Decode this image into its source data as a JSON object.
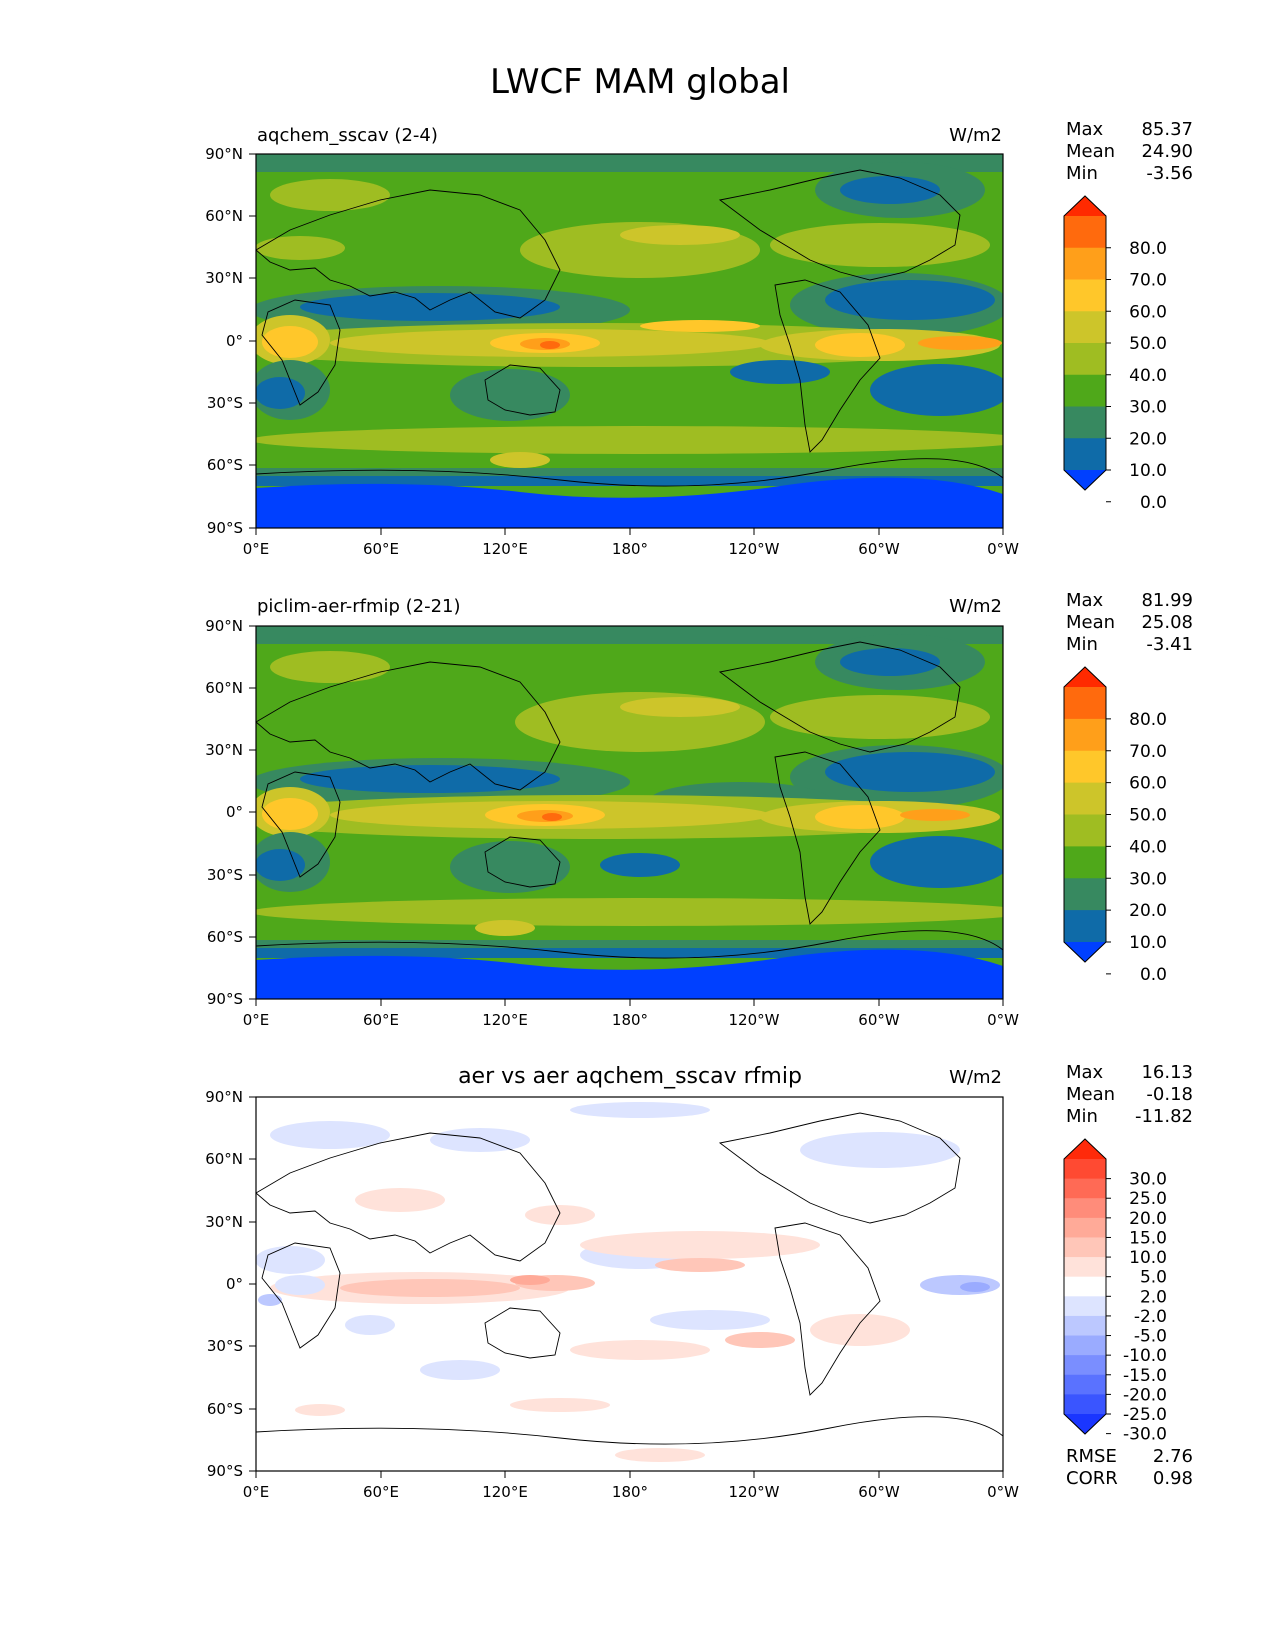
{
  "figure": {
    "title": "LWCF MAM global"
  },
  "lon_ticks": [
    "0°E",
    "60°E",
    "120°E",
    "180°",
    "120°W",
    "60°W",
    "0°W"
  ],
  "lat_ticks": [
    "90°N",
    "60°N",
    "30°N",
    "0°",
    "30°S",
    "60°S",
    "90°S"
  ],
  "panels": [
    {
      "title": "aqchem_sscav (2-4)",
      "units": "W/m2",
      "stats": [
        {
          "label": "Max",
          "value": "85.37"
        },
        {
          "label": "Mean",
          "value": "24.90"
        },
        {
          "label": "Min",
          "value": "-3.56"
        }
      ],
      "colorbar": {
        "levels": [
          "80.0",
          "70.0",
          "60.0",
          "50.0",
          "40.0",
          "30.0",
          "20.0",
          "10.0",
          "0.0"
        ],
        "colors": [
          "#ff2a00",
          "#ff6a0d",
          "#ff9f1a",
          "#ffc72a",
          "#cdc52a",
          "#9fbd22",
          "#4fa81a",
          "#378960",
          "#0f6ba8",
          "#0040ff"
        ]
      }
    },
    {
      "title": "piclim-aer-rfmip (2-21)",
      "units": "W/m2",
      "stats": [
        {
          "label": "Max",
          "value": "81.99"
        },
        {
          "label": "Mean",
          "value": "25.08"
        },
        {
          "label": "Min",
          "value": "-3.41"
        }
      ],
      "colorbar": {
        "levels": [
          "80.0",
          "70.0",
          "60.0",
          "50.0",
          "40.0",
          "30.0",
          "20.0",
          "10.0",
          "0.0"
        ],
        "colors": [
          "#ff2a00",
          "#ff6a0d",
          "#ff9f1a",
          "#ffc72a",
          "#cdc52a",
          "#9fbd22",
          "#4fa81a",
          "#378960",
          "#0f6ba8",
          "#0040ff"
        ]
      }
    },
    {
      "title": "aer vs aer aqchem_sscav rfmip",
      "units": "W/m2",
      "stats": [
        {
          "label": "Max",
          "value": "16.13"
        },
        {
          "label": "Mean",
          "value": "-0.18"
        },
        {
          "label": "Min",
          "value": "-11.82"
        }
      ],
      "colorbar": {
        "levels": [
          "30.0",
          "25.0",
          "20.0",
          "15.0",
          "10.0",
          "5.0",
          "2.0",
          "-2.0",
          "-5.0",
          "-10.0",
          "-15.0",
          "-20.0",
          "-25.0",
          "-30.0"
        ],
        "colors": [
          "#ff2a0a",
          "#ff4a32",
          "#ff6a55",
          "#ff8c7a",
          "#ffaa98",
          "#ffc6b8",
          "#ffe2da",
          "#ffffff",
          "#dde4ff",
          "#bcc8ff",
          "#9aabff",
          "#7a8eff",
          "#5a72ff",
          "#3a55ff",
          "#1a36ff"
        ]
      },
      "extra_stats": [
        {
          "label": "RMSE",
          "value": "2.76"
        },
        {
          "label": "CORR",
          "value": "0.98"
        }
      ]
    }
  ]
}
